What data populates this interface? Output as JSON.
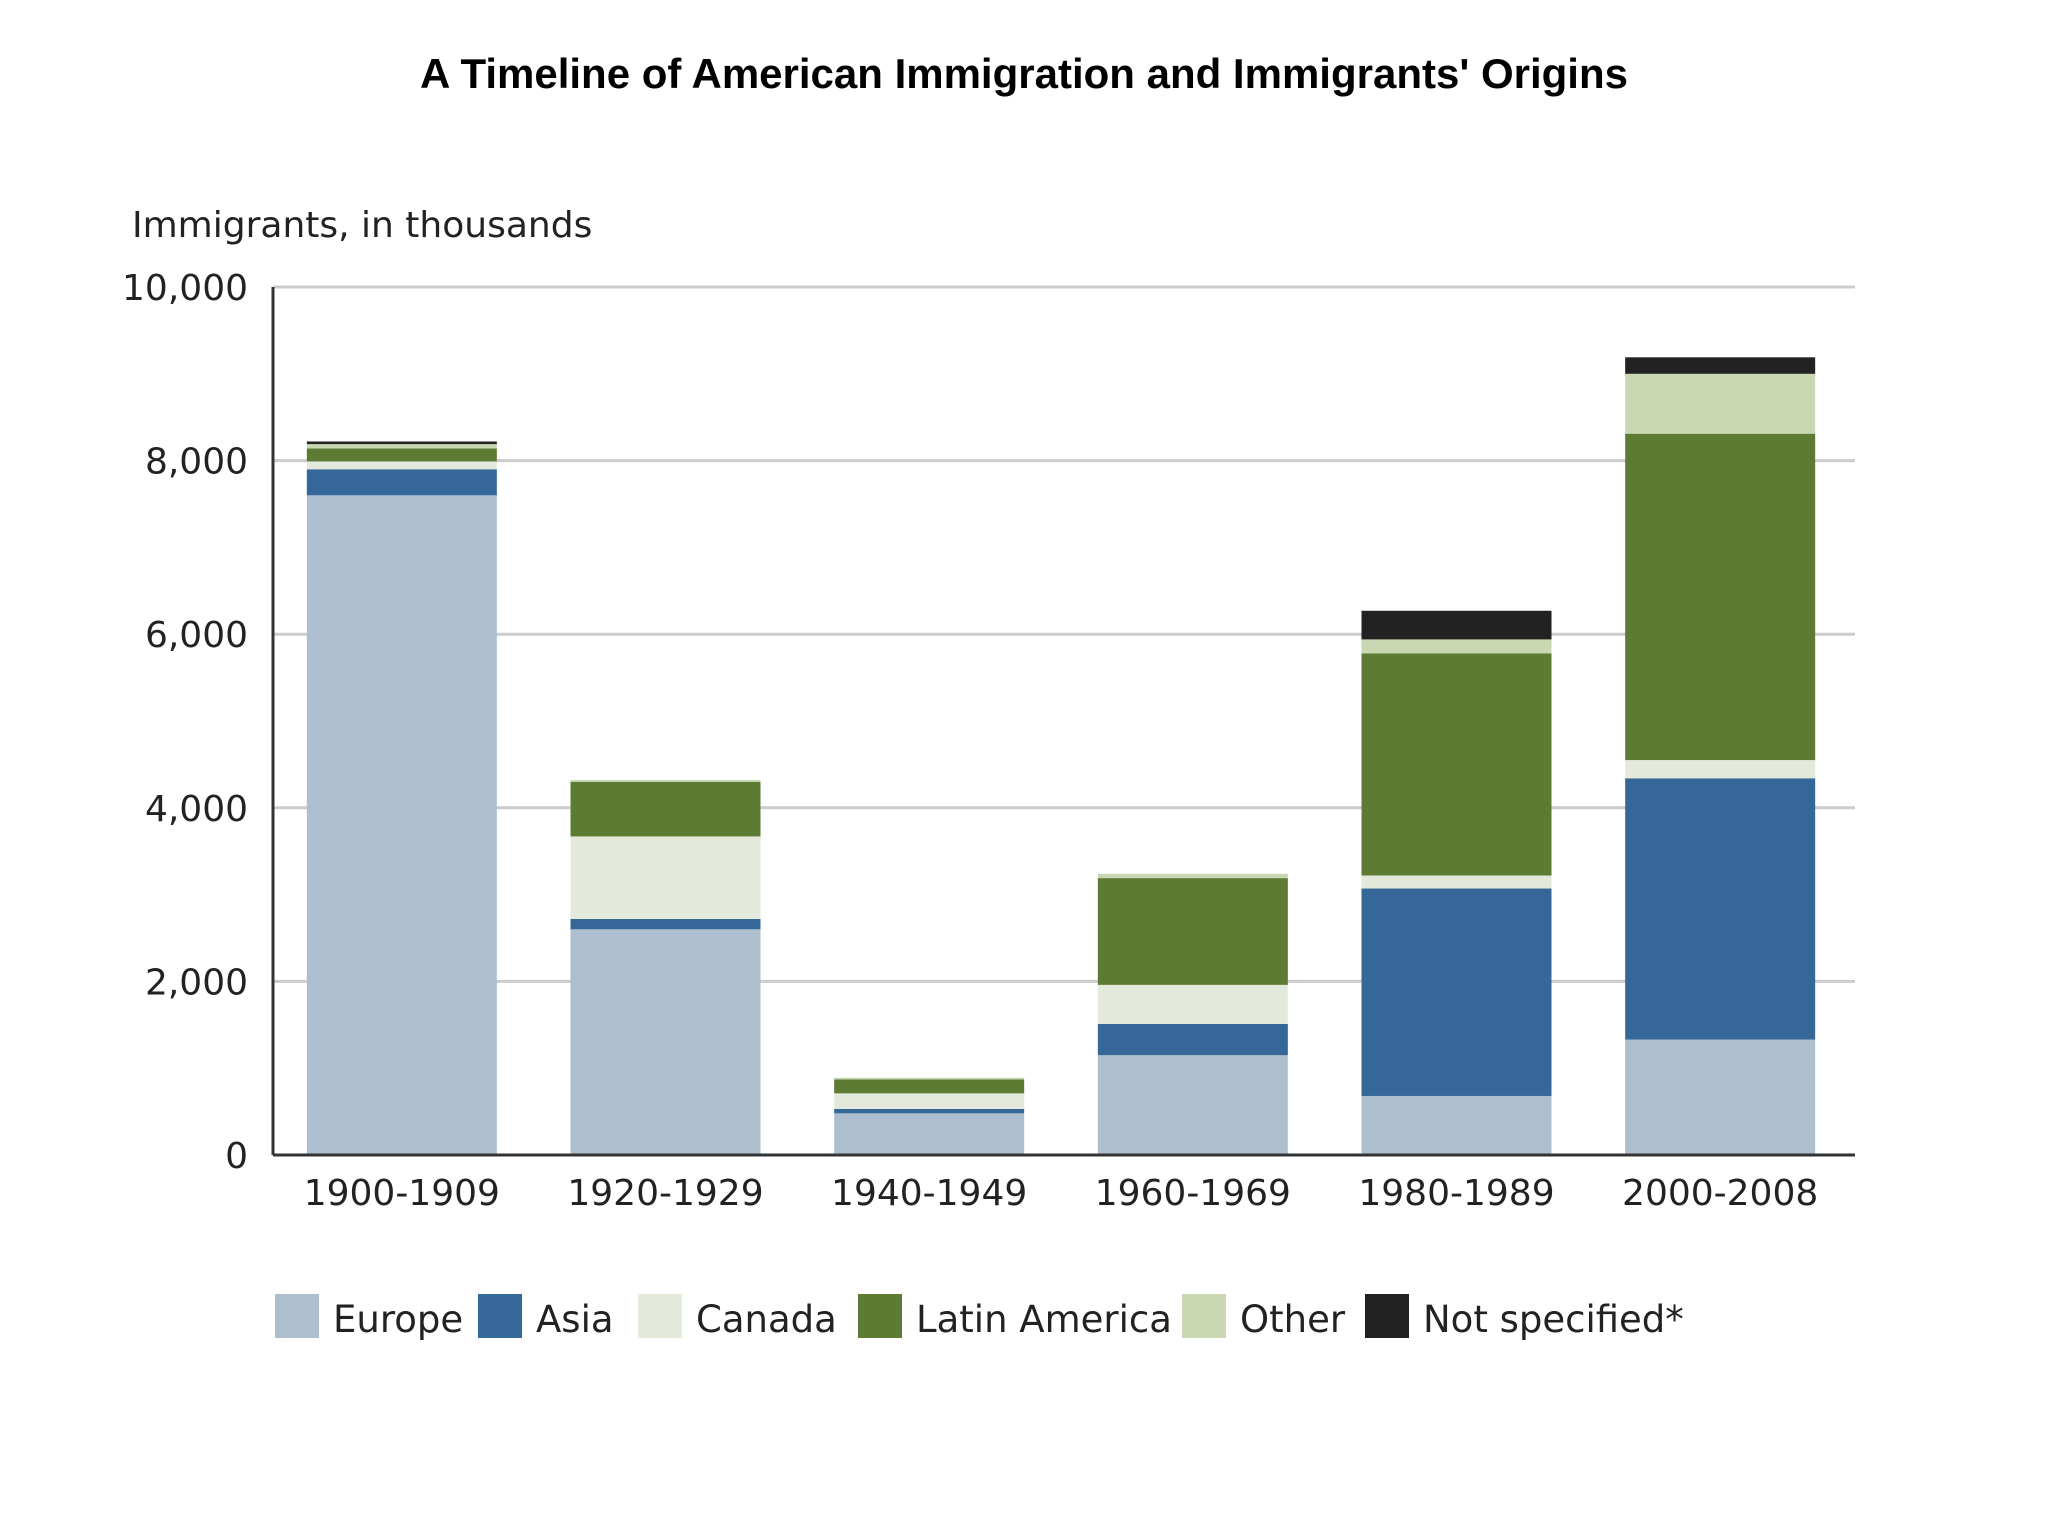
{
  "chart_data": {
    "type": "bar",
    "stacked": true,
    "title": "A Timeline of American Immigration and Immigrants' Origins",
    "ylabel": "Immigrants, in thousands",
    "xlabel": "",
    "ylim": [
      0,
      10000
    ],
    "yticks": [
      "0",
      "2,000",
      "4,000",
      "6,000",
      "8,000",
      "10,000"
    ],
    "ytick_values": [
      0,
      2000,
      4000,
      6000,
      8000,
      10000
    ],
    "grid": true,
    "legend_position": "bottom",
    "categories": [
      "1900-1909",
      "1920-1929",
      "1940-1949",
      "1960-1969",
      "1980-1989",
      "2000-2008"
    ],
    "series": [
      {
        "name": "Europe",
        "color": "#adbecf",
        "values": [
          7600,
          2600,
          480,
          1150,
          680,
          1330
        ]
      },
      {
        "name": "Asia",
        "color": "#356899",
        "values": [
          300,
          120,
          50,
          360,
          2390,
          3010
        ]
      },
      {
        "name": "Canada",
        "color": "#e3eadb",
        "values": [
          90,
          950,
          180,
          450,
          150,
          210
        ]
      },
      {
        "name": "Latin America",
        "color": "#5e7b33",
        "values": [
          150,
          630,
          160,
          1230,
          2560,
          3760
        ]
      },
      {
        "name": "Other",
        "color": "#c9d8b3",
        "values": [
          50,
          20,
          20,
          50,
          160,
          690
        ]
      },
      {
        "name": "Not specified*",
        "color": "#222222",
        "values": [
          30,
          0,
          0,
          0,
          330,
          190
        ]
      }
    ]
  }
}
